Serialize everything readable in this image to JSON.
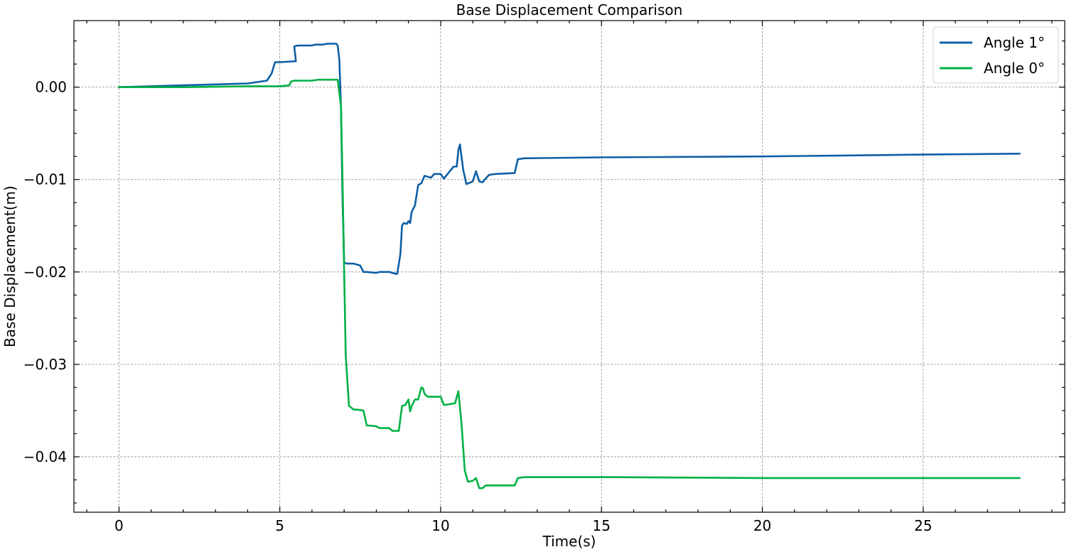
{
  "chart_data": {
    "type": "line",
    "title": "Base Displacement Comparison",
    "xlabel": "Time(s)",
    "ylabel": "Base Displacement(m)",
    "xlim": [
      -1.4,
      29.4
    ],
    "ylim": [
      -0.046,
      0.0072
    ],
    "xticks": [
      0,
      5,
      10,
      15,
      20,
      25
    ],
    "xtick_labels": [
      "0",
      "5",
      "10",
      "15",
      "20",
      "25"
    ],
    "yticks": [
      0.0,
      -0.01,
      -0.02,
      -0.03,
      -0.04
    ],
    "ytick_labels": [
      "0.00",
      "−0.01",
      "−0.02",
      "−0.03",
      "−0.04"
    ],
    "grid": true,
    "legend": "top-right",
    "series": [
      {
        "name": "Angle 1°",
        "color": "#0e5fa5",
        "x": [
          0,
          1,
          2,
          3,
          4,
          4.6,
          4.75,
          4.85,
          5.0,
          5.5,
          5.45,
          5.55,
          6.0,
          6.1,
          6.3,
          6.5,
          6.75,
          6.8,
          6.85,
          6.9,
          6.95,
          7.0,
          7.1,
          7.3,
          7.5,
          7.6,
          7.7,
          8.0,
          8.1,
          8.4,
          8.6,
          8.65,
          8.75,
          8.8,
          8.85,
          8.95,
          9.0,
          9.05,
          9.1,
          9.2,
          9.3,
          9.4,
          9.5,
          9.7,
          9.8,
          10.0,
          10.1,
          10.4,
          10.5,
          10.55,
          10.6,
          10.7,
          10.8,
          11.0,
          11.1,
          11.2,
          11.3,
          11.5,
          11.7,
          12.3,
          12.4,
          12.6,
          15,
          20,
          25,
          28
        ],
        "y": [
          0.0,
          0.0001,
          0.0002,
          0.0003,
          0.0004,
          0.0007,
          0.0015,
          0.0027,
          0.0027,
          0.0028,
          0.0044,
          0.0045,
          0.0045,
          0.0046,
          0.0046,
          0.0047,
          0.0047,
          0.0045,
          0.003,
          -0.002,
          -0.012,
          -0.019,
          -0.0191,
          -0.0191,
          -0.0193,
          -0.02,
          -0.02,
          -0.0201,
          -0.02,
          -0.02,
          -0.0202,
          -0.0202,
          -0.018,
          -0.015,
          -0.0147,
          -0.0148,
          -0.0145,
          -0.0147,
          -0.0135,
          -0.0128,
          -0.0106,
          -0.0104,
          -0.0096,
          -0.0098,
          -0.0094,
          -0.0094,
          -0.0099,
          -0.0086,
          -0.0086,
          -0.0068,
          -0.0062,
          -0.0089,
          -0.0105,
          -0.0102,
          -0.0091,
          -0.0102,
          -0.0103,
          -0.0095,
          -0.0094,
          -0.0093,
          -0.0078,
          -0.0077,
          -0.0076,
          -0.0075,
          -0.0073,
          -0.0072
        ]
      },
      {
        "name": "Angle 0°",
        "color": "#00b144",
        "x": [
          0,
          2,
          4,
          5.0,
          5.3,
          5.35,
          5.45,
          5.5,
          6.0,
          6.2,
          6.5,
          6.8,
          6.9,
          6.95,
          7.0,
          7.05,
          7.15,
          7.3,
          7.4,
          7.6,
          7.7,
          8.0,
          8.1,
          8.4,
          8.5,
          8.7,
          8.8,
          8.9,
          9.0,
          9.05,
          9.1,
          9.2,
          9.3,
          9.4,
          9.45,
          9.5,
          9.6,
          10.0,
          10.1,
          10.3,
          10.45,
          10.55,
          10.65,
          10.75,
          10.85,
          11.0,
          11.1,
          11.2,
          11.3,
          11.4,
          12.3,
          12.4,
          12.6,
          15,
          20,
          25,
          28
        ],
        "y": [
          0.0,
          0.0,
          0.0001,
          0.0001,
          0.0002,
          0.0006,
          0.0007,
          0.0007,
          0.0007,
          0.0008,
          0.0008,
          0.0008,
          -0.002,
          -0.01,
          -0.02,
          -0.029,
          -0.0345,
          -0.0349,
          -0.0349,
          -0.035,
          -0.0366,
          -0.0367,
          -0.0369,
          -0.0369,
          -0.0372,
          -0.0372,
          -0.0345,
          -0.0344,
          -0.0338,
          -0.0351,
          -0.0345,
          -0.0338,
          -0.0338,
          -0.0325,
          -0.0326,
          -0.0332,
          -0.0335,
          -0.0335,
          -0.0344,
          -0.0343,
          -0.0342,
          -0.0329,
          -0.0365,
          -0.0415,
          -0.0427,
          -0.0426,
          -0.0423,
          -0.0434,
          -0.0434,
          -0.0431,
          -0.0431,
          -0.0423,
          -0.0422,
          -0.0422,
          -0.0423,
          -0.0423,
          -0.0423
        ]
      }
    ]
  }
}
